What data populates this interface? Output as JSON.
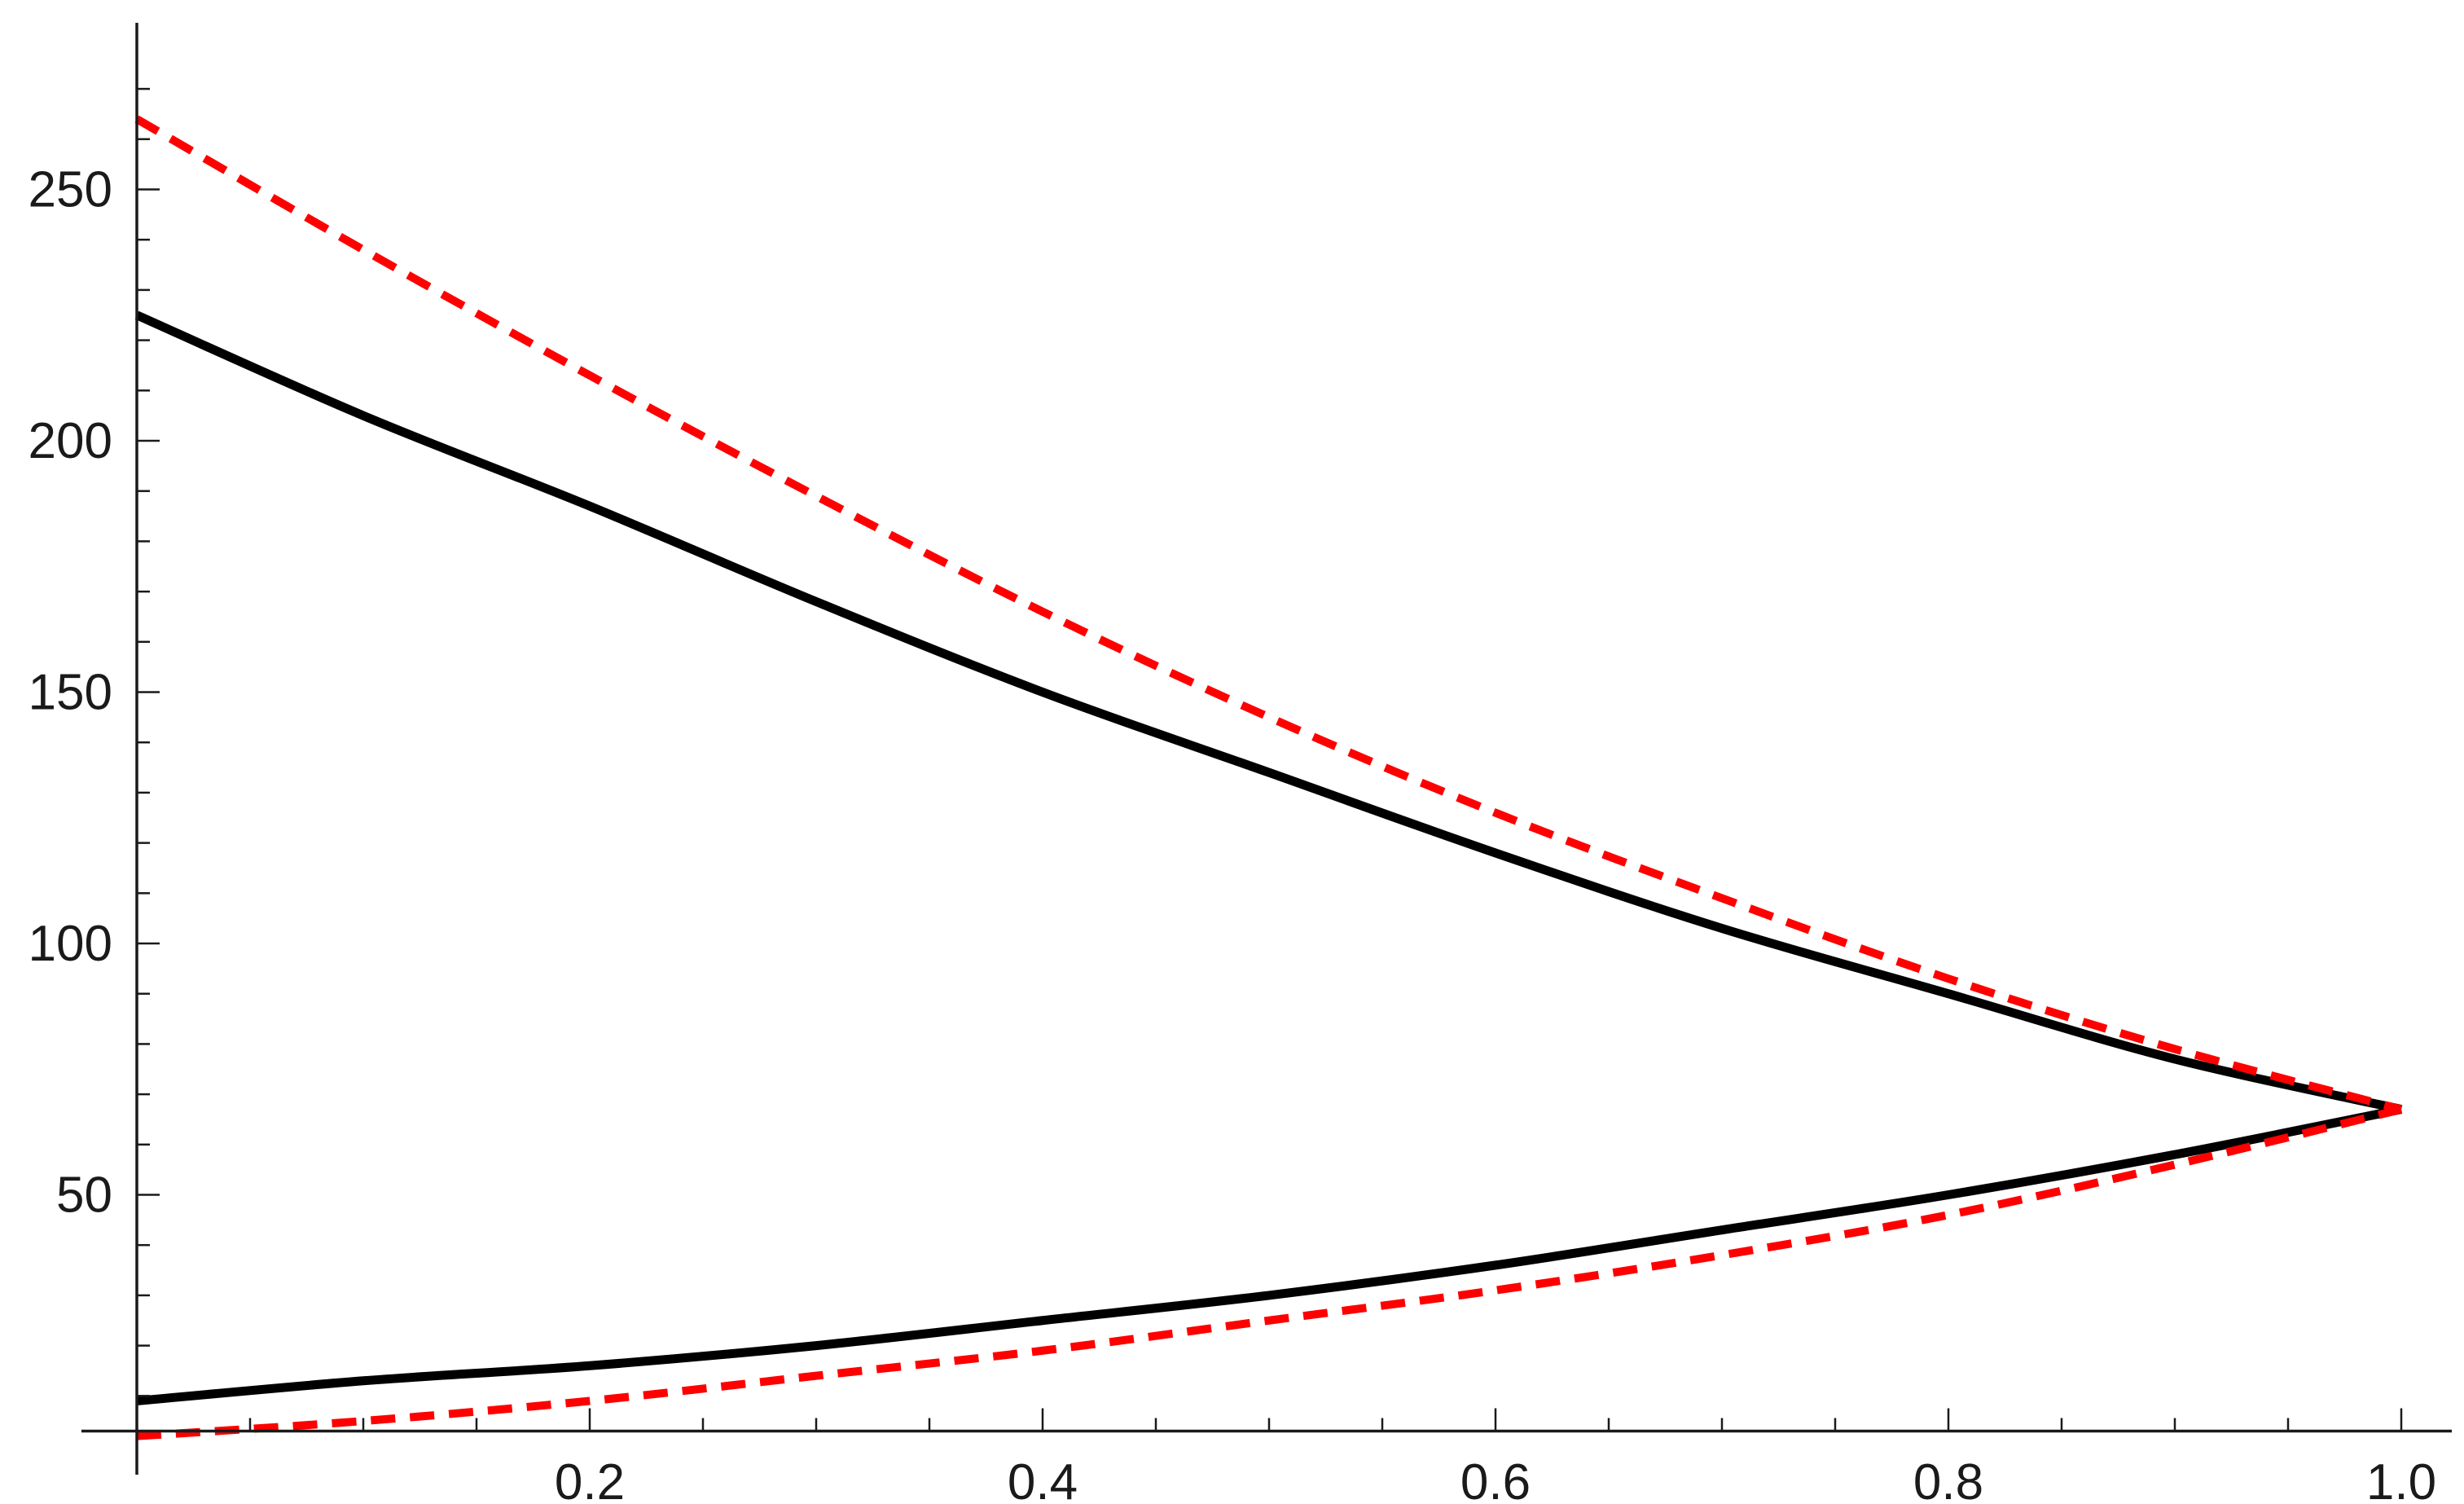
{
  "chart_data": {
    "type": "line",
    "title": "",
    "xlabel": "",
    "ylabel": "",
    "xlim": [
      0,
      1.05
    ],
    "ylim": [
      0,
      277
    ],
    "x_axis_crosses_y_at": 3,
    "x_ticks": [
      {
        "value": 0.2,
        "label": "0.2"
      },
      {
        "value": 0.4,
        "label": "0.4"
      },
      {
        "value": 0.6,
        "label": "0.6"
      },
      {
        "value": 0.8,
        "label": "0.8"
      },
      {
        "value": 1.0,
        "label": "1.0"
      }
    ],
    "y_ticks": [
      {
        "value": 50,
        "label": "50"
      },
      {
        "value": 100,
        "label": "100"
      },
      {
        "value": 150,
        "label": "150"
      },
      {
        "value": 200,
        "label": "200"
      },
      {
        "value": 250,
        "label": "250"
      }
    ],
    "grid": false,
    "legend": "none",
    "series": [
      {
        "color": "#000000",
        "style": "solid",
        "x": [
          0,
          0.1,
          0.2,
          0.3,
          0.4,
          0.5,
          0.6,
          0.7,
          0.8,
          0.9,
          1.0
        ],
        "y": [
          225,
          205,
          187,
          168,
          150,
          134,
          118,
          103,
          90,
          77,
          67
        ]
      },
      {
        "color": "#000000",
        "style": "solid",
        "x": [
          0,
          0.1,
          0.2,
          0.3,
          0.4,
          0.5,
          0.6,
          0.7,
          0.8,
          0.9,
          1.0
        ],
        "y": [
          9,
          13,
          16,
          20,
          25,
          30,
          36,
          43,
          50,
          58,
          67
        ]
      },
      {
        "color": "#ff0000",
        "style": "dashed",
        "x": [
          0,
          0.1,
          0.2,
          0.3,
          0.4,
          0.5,
          0.6,
          0.7,
          0.8,
          0.9,
          1.0
        ],
        "y": [
          264,
          238,
          213,
          189,
          166,
          145,
          126,
          109,
          93,
          79,
          67
        ]
      },
      {
        "color": "#ff0000",
        "style": "dashed",
        "x": [
          0,
          0.1,
          0.2,
          0.3,
          0.4,
          0.5,
          0.6,
          0.7,
          0.8,
          0.9,
          1.0
        ],
        "y": [
          2,
          5,
          9,
          14,
          19,
          25,
          31,
          38,
          46,
          56,
          67
        ]
      }
    ]
  }
}
